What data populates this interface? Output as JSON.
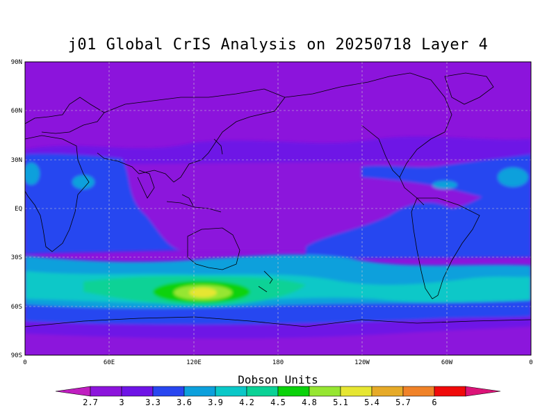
{
  "title": "j01 Global CrIS Analysis on 20250718 Layer 4",
  "lat_ticks": [
    "90N",
    "60N",
    "30N",
    "EQ",
    "30S",
    "60S",
    "90S"
  ],
  "lon_ticks": [
    "0",
    "60E",
    "120E",
    "180",
    "120W",
    "60W",
    "0"
  ],
  "colorbar": {
    "title": "Dobson Units",
    "labels": [
      "2.7",
      "3",
      "3.3",
      "3.6",
      "3.9",
      "4.2",
      "4.5",
      "4.8",
      "5.1",
      "5.4",
      "5.7",
      "6"
    ],
    "colors": [
      "#c01ec0",
      "#8c14dc",
      "#6e14e6",
      "#2846f0",
      "#0ca0dc",
      "#0ac8c8",
      "#0ad296",
      "#0ad20a",
      "#96e632",
      "#e6e632",
      "#e6aa28",
      "#f08228",
      "#f00a0a",
      "#dc1478"
    ]
  }
}
